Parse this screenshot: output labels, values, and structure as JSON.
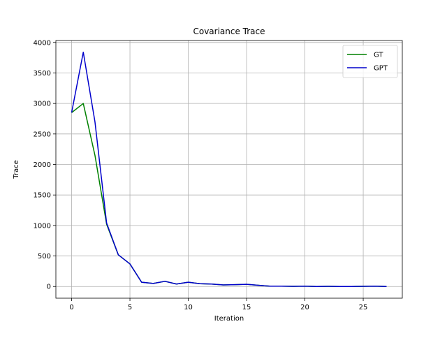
{
  "chart_data": {
    "type": "line",
    "title": "Covariance Trace",
    "xlabel": "Iteration",
    "ylabel": "Trace",
    "xlim": [
      -1.35,
      28.35
    ],
    "ylim": [
      -192,
      4032
    ],
    "xticks": [
      0,
      5,
      10,
      15,
      20,
      25
    ],
    "yticks": [
      0,
      500,
      1000,
      1500,
      2000,
      2500,
      3000,
      3500,
      4000
    ],
    "grid": true,
    "legend_position": "top-right",
    "x": [
      0,
      1,
      2,
      3,
      4,
      5,
      6,
      7,
      8,
      9,
      10,
      11,
      12,
      13,
      14,
      15,
      16,
      17,
      18,
      19,
      20,
      21,
      22,
      23,
      24,
      25,
      26,
      27
    ],
    "series": [
      {
        "name": "GT",
        "color": "#008000",
        "values": [
          2850,
          3000,
          2150,
          1020,
          520,
          370,
          70,
          50,
          85,
          40,
          70,
          45,
          40,
          25,
          30,
          35,
          20,
          5,
          5,
          3,
          5,
          0,
          2,
          0,
          0,
          2,
          5,
          0
        ]
      },
      {
        "name": "GPT",
        "color": "#0000cc",
        "values": [
          2850,
          3840,
          2700,
          1040,
          520,
          370,
          70,
          50,
          85,
          40,
          70,
          45,
          40,
          25,
          30,
          35,
          20,
          5,
          5,
          3,
          5,
          0,
          2,
          0,
          0,
          2,
          5,
          0
        ]
      }
    ]
  }
}
